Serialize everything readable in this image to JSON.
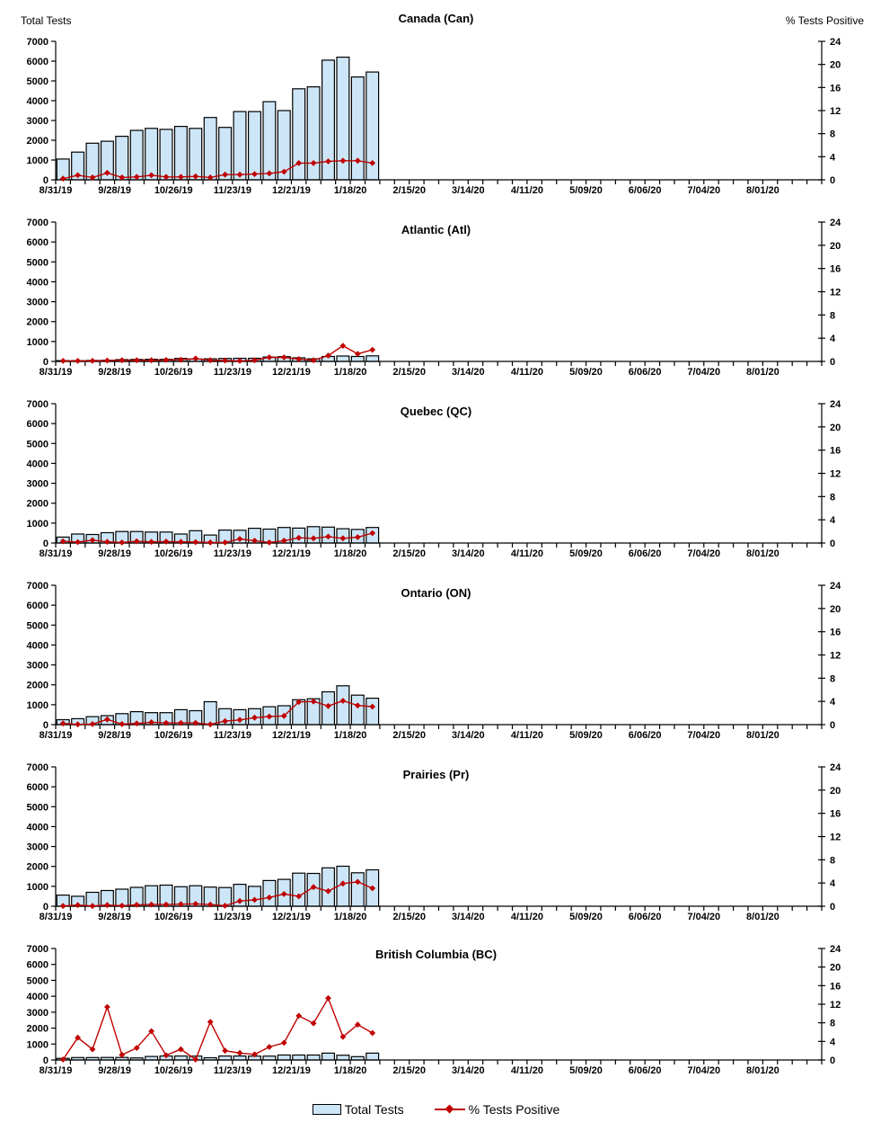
{
  "page": {
    "left_axis_title": "Total Tests",
    "right_axis_title": "% Tests Positive"
  },
  "legend": {
    "bars_label": "Total Tests",
    "line_label": "% Tests Positive"
  },
  "colors": {
    "bar_fill": "#CDE6F7",
    "bar_border": "#000000",
    "line": "#C00000",
    "axis": "#000000"
  },
  "axes": {
    "left": {
      "lim": [
        0,
        7000
      ],
      "step": 1000
    },
    "right": {
      "lim": [
        0,
        24
      ],
      "step": 4
    },
    "x": {
      "weeks_total": 52,
      "label_every": 4,
      "tick_labels": [
        "8/31/19",
        "9/28/19",
        "10/26/19",
        "11/23/19",
        "12/21/19",
        "1/18/20",
        "2/15/20",
        "3/14/20",
        "4/11/20",
        "5/09/20",
        "6/06/20",
        "7/04/20",
        "8/01/20"
      ]
    }
  },
  "chart_data": [
    {
      "type": "bar",
      "title": "Canada (Can)",
      "x_dates": [
        "8/31/19",
        "9/7/19",
        "9/14/19",
        "9/21/19",
        "9/28/19",
        "10/5/19",
        "10/12/19",
        "10/19/19",
        "10/26/19",
        "11/2/19",
        "11/9/19",
        "11/16/19",
        "11/23/19",
        "11/30/19",
        "12/7/19",
        "12/14/19",
        "12/21/19",
        "12/28/19",
        "1/4/20",
        "1/11/20",
        "1/18/20",
        "1/25/20"
      ],
      "left_ylim": [
        0,
        7000
      ],
      "right_ylim": [
        0,
        24
      ],
      "series": [
        {
          "name": "Total Tests",
          "kind": "bar",
          "axis": "left",
          "values": [
            1050,
            1400,
            1850,
            1950,
            2200,
            2500,
            2600,
            2550,
            2700,
            2600,
            3150,
            2650,
            3450,
            3450,
            3950,
            3500,
            4600,
            4700,
            6050,
            6200,
            5200,
            5450
          ]
        },
        {
          "name": "% Tests Positive",
          "kind": "line",
          "axis": "right",
          "values": [
            0.2,
            0.8,
            0.4,
            1.2,
            0.4,
            0.5,
            0.8,
            0.5,
            0.5,
            0.6,
            0.4,
            0.9,
            0.9,
            1.0,
            1.1,
            1.4,
            2.9,
            2.9,
            3.2,
            3.3,
            3.3,
            2.9
          ]
        }
      ]
    },
    {
      "type": "bar",
      "title": "Atlantic (Atl)",
      "x_dates": [
        "8/31/19",
        "9/7/19",
        "9/14/19",
        "9/21/19",
        "9/28/19",
        "10/5/19",
        "10/12/19",
        "10/19/19",
        "10/26/19",
        "11/2/19",
        "11/9/19",
        "11/16/19",
        "11/23/19",
        "11/30/19",
        "12/7/19",
        "12/14/19",
        "12/21/19",
        "12/28/19",
        "1/4/20",
        "1/11/20",
        "1/18/20",
        "1/25/20"
      ],
      "left_ylim": [
        0,
        7000
      ],
      "right_ylim": [
        0,
        24
      ],
      "series": [
        {
          "name": "Total Tests",
          "kind": "bar",
          "axis": "left",
          "values": [
            40,
            40,
            50,
            60,
            90,
            100,
            110,
            110,
            150,
            120,
            130,
            150,
            160,
            160,
            220,
            240,
            180,
            130,
            250,
            270,
            250,
            280
          ]
        },
        {
          "name": "% Tests Positive",
          "kind": "line",
          "axis": "right",
          "values": [
            0.1,
            0.1,
            0.1,
            0.15,
            0.2,
            0.2,
            0.2,
            0.25,
            0.3,
            0.5,
            0.2,
            0.15,
            0.1,
            0.2,
            0.7,
            0.7,
            0.4,
            0.2,
            1.0,
            2.7,
            1.3,
            2.0
          ]
        }
      ]
    },
    {
      "type": "bar",
      "title": "Quebec (QC)",
      "x_dates": [
        "8/31/19",
        "9/7/19",
        "9/14/19",
        "9/21/19",
        "9/28/19",
        "10/5/19",
        "10/12/19",
        "10/19/19",
        "10/26/19",
        "11/2/19",
        "11/9/19",
        "11/16/19",
        "11/23/19",
        "11/30/19",
        "12/7/19",
        "12/14/19",
        "12/21/19",
        "12/28/19",
        "1/4/20",
        "1/11/20",
        "1/18/20",
        "1/25/20"
      ],
      "left_ylim": [
        0,
        7000
      ],
      "right_ylim": [
        0,
        24
      ],
      "series": [
        {
          "name": "Total Tests",
          "kind": "bar",
          "axis": "left",
          "values": [
            300,
            450,
            430,
            520,
            580,
            580,
            550,
            550,
            450,
            620,
            400,
            650,
            640,
            740,
            700,
            780,
            750,
            820,
            800,
            720,
            680,
            780
          ]
        },
        {
          "name": "% Tests Positive",
          "kind": "line",
          "axis": "right",
          "values": [
            0.3,
            0.15,
            0.5,
            0.2,
            0.1,
            0.3,
            0.2,
            0.25,
            0.2,
            0.15,
            0.1,
            0.1,
            0.7,
            0.4,
            0.1,
            0.4,
            0.9,
            0.8,
            1.1,
            0.8,
            1.0,
            1.7
          ]
        }
      ]
    },
    {
      "type": "bar",
      "title": "Ontario (ON)",
      "x_dates": [
        "8/31/19",
        "9/7/19",
        "9/14/19",
        "9/21/19",
        "9/28/19",
        "10/5/19",
        "10/12/19",
        "10/19/19",
        "10/26/19",
        "11/2/19",
        "11/9/19",
        "11/16/19",
        "11/23/19",
        "11/30/19",
        "12/7/19",
        "12/14/19",
        "12/21/19",
        "12/28/19",
        "1/4/20",
        "1/11/20",
        "1/18/20",
        "1/25/20"
      ],
      "left_ylim": [
        0,
        7000
      ],
      "right_ylim": [
        0,
        24
      ],
      "series": [
        {
          "name": "Total Tests",
          "kind": "bar",
          "axis": "left",
          "values": [
            250,
            300,
            400,
            450,
            550,
            650,
            600,
            600,
            750,
            700,
            1150,
            800,
            750,
            800,
            900,
            950,
            1250,
            1300,
            1650,
            1950,
            1480,
            1330
          ]
        },
        {
          "name": "% Tests Positive",
          "kind": "line",
          "axis": "right",
          "values": [
            0.2,
            0.05,
            0.1,
            0.9,
            0.1,
            0.2,
            0.4,
            0.3,
            0.3,
            0.3,
            0.05,
            0.6,
            0.8,
            1.2,
            1.4,
            1.5,
            3.9,
            4.0,
            3.2,
            4.1,
            3.3,
            3.1
          ]
        }
      ]
    },
    {
      "type": "bar",
      "title": "Prairies (Pr)",
      "x_dates": [
        "8/31/19",
        "9/7/19",
        "9/14/19",
        "9/21/19",
        "9/28/19",
        "10/5/19",
        "10/12/19",
        "10/19/19",
        "10/26/19",
        "11/2/19",
        "11/9/19",
        "11/16/19",
        "11/23/19",
        "11/30/19",
        "12/7/19",
        "12/14/19",
        "12/21/19",
        "12/28/19",
        "1/4/20",
        "1/11/20",
        "1/18/20",
        "1/25/20"
      ],
      "left_ylim": [
        0,
        7000
      ],
      "right_ylim": [
        0,
        24
      ],
      "series": [
        {
          "name": "Total Tests",
          "kind": "bar",
          "axis": "left",
          "values": [
            560,
            500,
            700,
            790,
            860,
            950,
            1030,
            1060,
            980,
            1030,
            960,
            940,
            1100,
            1000,
            1290,
            1350,
            1660,
            1650,
            1930,
            2010,
            1680,
            1830
          ]
        },
        {
          "name": "% Tests Positive",
          "kind": "line",
          "axis": "right",
          "values": [
            0.05,
            0.2,
            0.05,
            0.2,
            0.1,
            0.25,
            0.3,
            0.3,
            0.35,
            0.4,
            0.3,
            0.1,
            0.9,
            1.1,
            1.5,
            2.1,
            1.7,
            3.3,
            2.6,
            3.9,
            4.2,
            3.1
          ]
        }
      ]
    },
    {
      "type": "bar",
      "title": "British Columbia (BC)",
      "x_dates": [
        "8/31/19",
        "9/7/19",
        "9/14/19",
        "9/21/19",
        "9/28/19",
        "10/5/19",
        "10/12/19",
        "10/19/19",
        "10/26/19",
        "11/2/19",
        "11/9/19",
        "11/16/19",
        "11/23/19",
        "11/30/19",
        "12/7/19",
        "12/14/19",
        "12/21/19",
        "12/28/19",
        "1/4/20",
        "1/11/20",
        "1/18/20",
        "1/25/20"
      ],
      "left_ylim": [
        0,
        7000
      ],
      "right_ylim": [
        0,
        24
      ],
      "series": [
        {
          "name": "Total Tests",
          "kind": "bar",
          "axis": "left",
          "values": [
            100,
            150,
            150,
            160,
            160,
            130,
            220,
            250,
            250,
            240,
            140,
            250,
            250,
            240,
            240,
            310,
            310,
            310,
            430,
            300,
            210,
            430
          ]
        },
        {
          "name": "% Tests Positive",
          "kind": "line",
          "axis": "right",
          "values": [
            0.1,
            4.8,
            2.3,
            11.4,
            1.1,
            2.6,
            6.2,
            1.0,
            2.3,
            0.1,
            8.2,
            2.0,
            1.5,
            1.2,
            2.8,
            3.7,
            9.5,
            7.9,
            13.3,
            5.0,
            7.6,
            5.8
          ]
        }
      ]
    }
  ]
}
